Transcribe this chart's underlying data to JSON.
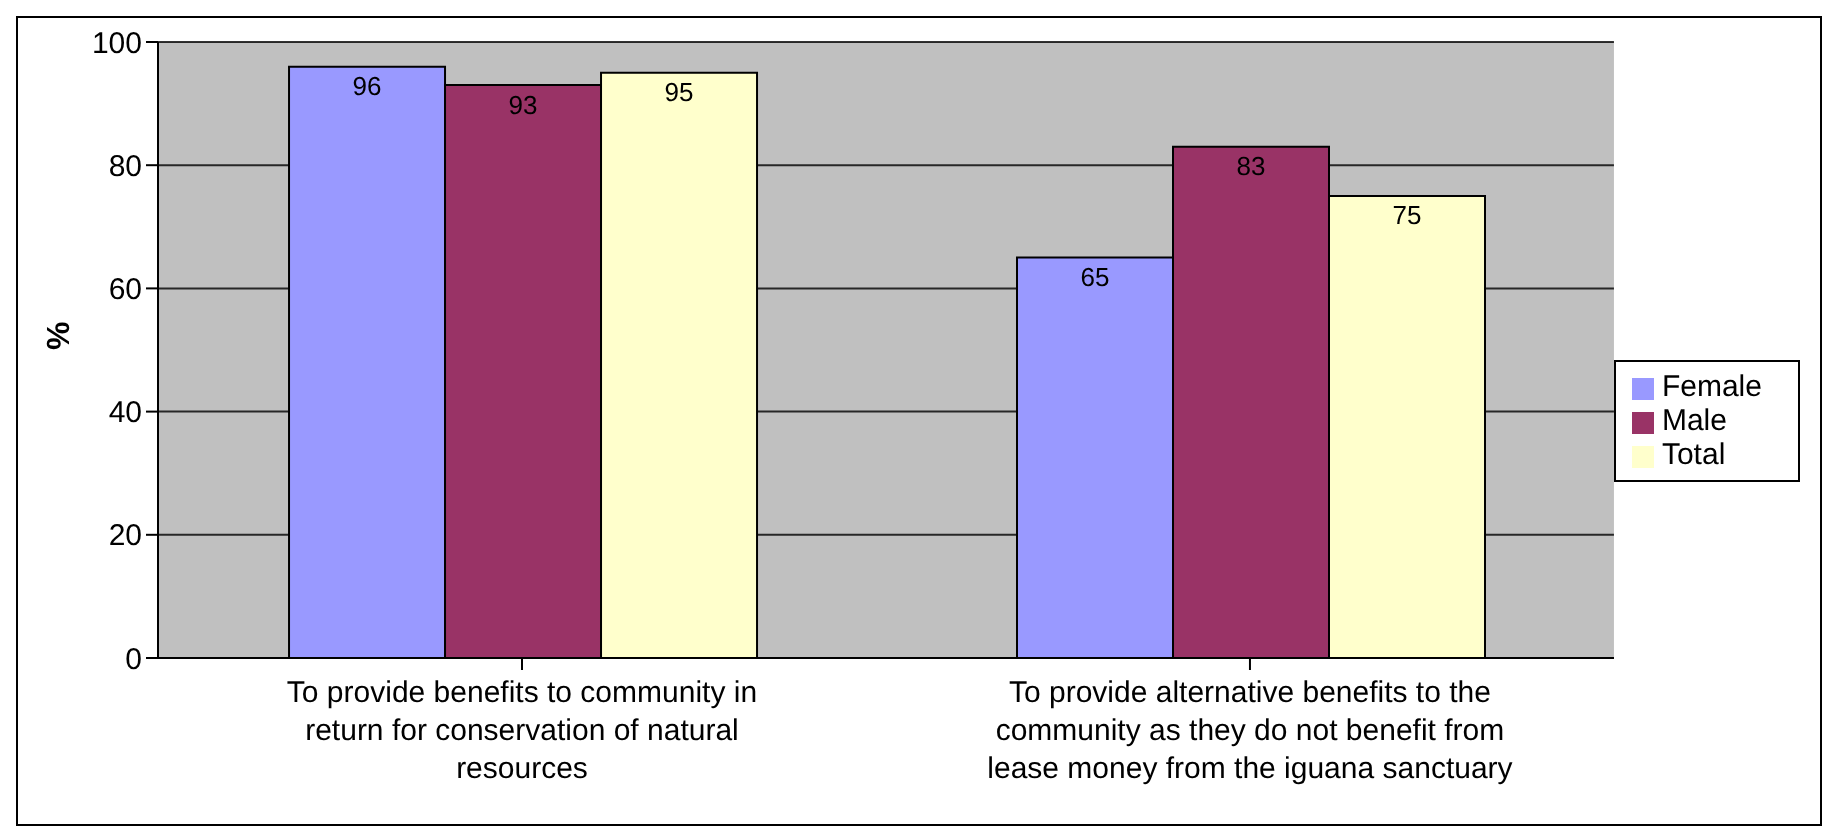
{
  "chart_data": {
    "type": "bar",
    "ylabel": "%",
    "categories": [
      "To provide benefits to community in return for conservation of natural resources",
      "To provide alternative benefits to the community as they do not benefit from lease money from the iguana sanctuary"
    ],
    "series": [
      {
        "name": "Female",
        "color": "#9999ff",
        "values": [
          96,
          65
        ]
      },
      {
        "name": "Male",
        "color": "#993366",
        "values": [
          93,
          83
        ]
      },
      {
        "name": "Total",
        "color": "#ffffcc",
        "values": [
          95,
          75
        ]
      }
    ],
    "ylim": [
      0,
      100
    ],
    "yticks": [
      0,
      20,
      40,
      60,
      80,
      100
    ],
    "grid": "y",
    "legend": "right",
    "data_labels": true
  }
}
